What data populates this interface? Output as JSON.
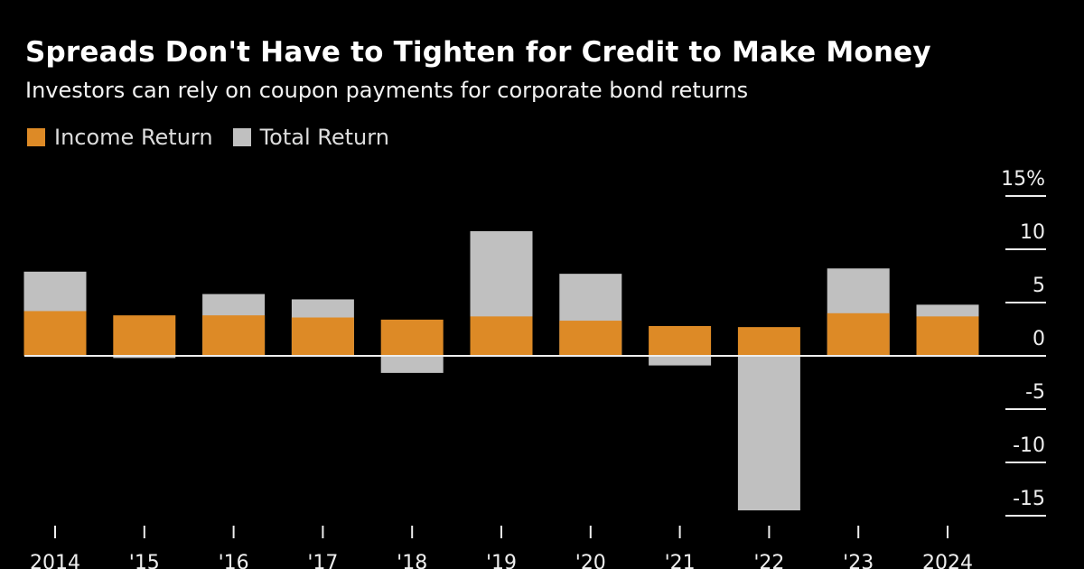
{
  "chart_data": {
    "type": "bar",
    "title": "Spreads Don't Have to Tighten for Credit to Make Money",
    "subtitle": "Investors can rely on coupon payments for corporate bond returns",
    "categories": [
      "2014",
      "'15",
      "'16",
      "'17",
      "'18",
      "'19",
      "'20",
      "'21",
      "'22",
      "'23",
      "2024"
    ],
    "series": [
      {
        "name": "Income Return",
        "color": "#dd8a26",
        "values": [
          4.2,
          3.8,
          3.8,
          3.6,
          3.4,
          3.7,
          3.3,
          2.8,
          2.7,
          4.0,
          3.7
        ]
      },
      {
        "name": "Total Return",
        "color": "#c0c0c0",
        "values": [
          7.9,
          -0.2,
          5.8,
          5.3,
          -1.6,
          11.7,
          7.7,
          -0.9,
          -14.5,
          8.2,
          4.8
        ]
      }
    ],
    "overlap": true,
    "ylim": [
      -15,
      15
    ],
    "yticks": [
      15,
      10,
      5,
      0,
      -5,
      -10,
      -15
    ],
    "ytick_labels": [
      "15%",
      "10",
      "5",
      "0",
      "-5",
      "-10",
      "-15"
    ],
    "y_axis_position": "right",
    "legend_position": "top-left",
    "grid": false
  }
}
